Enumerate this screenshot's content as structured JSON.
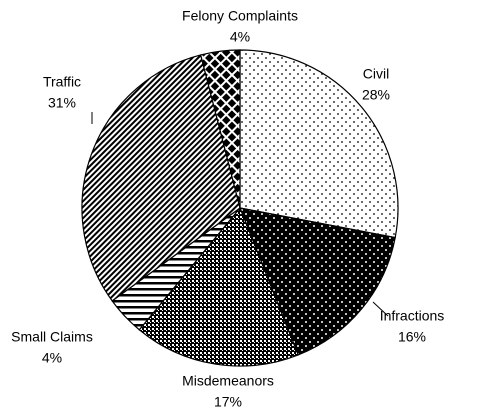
{
  "chart_data": {
    "type": "pie",
    "categories": [
      "Civil",
      "Infractions",
      "Misdemeanors",
      "Small Claims",
      "Traffic",
      "Felony Complaints"
    ],
    "values": [
      28,
      16,
      17,
      4,
      31,
      4
    ],
    "value_labels": [
      "28%",
      "16%",
      "17%",
      "4%",
      "31%",
      "4%"
    ]
  }
}
